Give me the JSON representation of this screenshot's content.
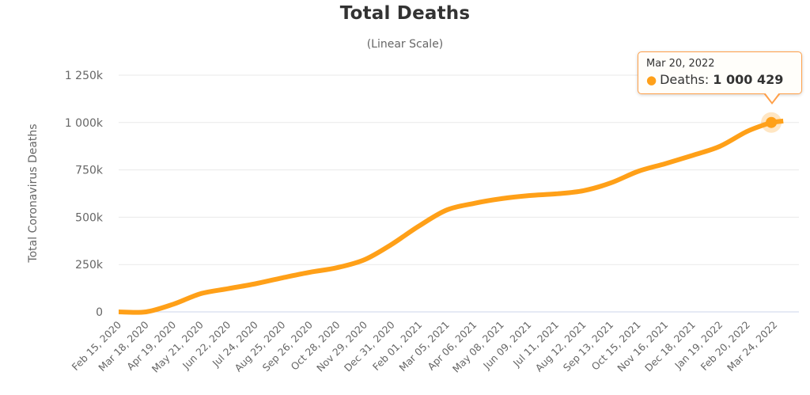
{
  "chart_data": {
    "type": "line",
    "title": "Total Deaths",
    "subtitle": "(Linear Scale)",
    "ylabel": "Total Coronavirus Deaths",
    "xlabel": "",
    "legend": "none",
    "grid": "horizontal",
    "line_color": "#ffa018",
    "grid_color": "#e9e9e9",
    "axis_line_color": "#ccd6eb",
    "label_color": "#666666",
    "ylim": [
      0,
      1250000
    ],
    "ytick_values": [
      0,
      250000,
      500000,
      750000,
      1000000,
      1250000
    ],
    "ytick_labels": [
      "0",
      "250k",
      "500k",
      "750k",
      "1 000k",
      "1 250k"
    ],
    "xtick_dates": [
      "2020-02-15",
      "2020-03-18",
      "2020-04-19",
      "2020-05-21",
      "2020-06-22",
      "2020-07-24",
      "2020-08-25",
      "2020-09-26",
      "2020-10-28",
      "2020-11-29",
      "2020-12-31",
      "2021-02-01",
      "2021-03-05",
      "2021-04-06",
      "2021-05-08",
      "2021-06-09",
      "2021-07-11",
      "2021-08-12",
      "2021-09-13",
      "2021-10-15",
      "2021-11-16",
      "2021-12-18",
      "2022-01-19",
      "2022-02-20",
      "2022-03-24"
    ],
    "xtick_labels": [
      "Feb 15, 2020",
      "Mar 18, 2020",
      "Apr 19, 2020",
      "May 21, 2020",
      "Jun 22, 2020",
      "Jul 24, 2020",
      "Aug 25, 2020",
      "Sep 26, 2020",
      "Oct 28, 2020",
      "Nov 29, 2020",
      "Dec 31, 2020",
      "Feb 01, 2021",
      "Mar 05, 2021",
      "Apr 06, 2021",
      "May 08, 2021",
      "Jun 09, 2021",
      "Jul 11, 2021",
      "Aug 12, 2021",
      "Sep 13, 2021",
      "Oct 15, 2021",
      "Nov 16, 2021",
      "Dec 18, 2021",
      "Jan 19, 2022",
      "Feb 20, 2022",
      "Mar 24, 2022"
    ],
    "series": [
      {
        "name": "Deaths",
        "points": [
          [
            "2020-02-15",
            5
          ],
          [
            "2020-03-18",
            150
          ],
          [
            "2020-04-19",
            40600
          ],
          [
            "2020-05-21",
            96000
          ],
          [
            "2020-06-22",
            122600
          ],
          [
            "2020-07-24",
            148500
          ],
          [
            "2020-08-25",
            180200
          ],
          [
            "2020-09-26",
            209400
          ],
          [
            "2020-10-28",
            233700
          ],
          [
            "2020-11-29",
            276000
          ],
          [
            "2020-12-31",
            358000
          ],
          [
            "2021-02-01",
            455000
          ],
          [
            "2021-03-05",
            538000
          ],
          [
            "2021-04-06",
            573000
          ],
          [
            "2021-05-08",
            598000
          ],
          [
            "2021-06-09",
            614000
          ],
          [
            "2021-07-11",
            623500
          ],
          [
            "2021-08-12",
            640000
          ],
          [
            "2021-09-13",
            681000
          ],
          [
            "2021-10-15",
            742000
          ],
          [
            "2021-11-16",
            783000
          ],
          [
            "2021-12-18",
            827000
          ],
          [
            "2022-01-19",
            875000
          ],
          [
            "2022-02-20",
            954000
          ],
          [
            "2022-03-20",
            1000429
          ],
          [
            "2022-03-24",
            1002900
          ],
          [
            "2022-04-03",
            1008000
          ]
        ]
      }
    ],
    "highlight_point": {
      "date": "2022-03-20",
      "value": 1000429
    }
  },
  "tooltip": {
    "date_label": "Mar 20, 2022",
    "bullet": "●",
    "series_label": "Deaths:",
    "value": "1 000 429"
  }
}
